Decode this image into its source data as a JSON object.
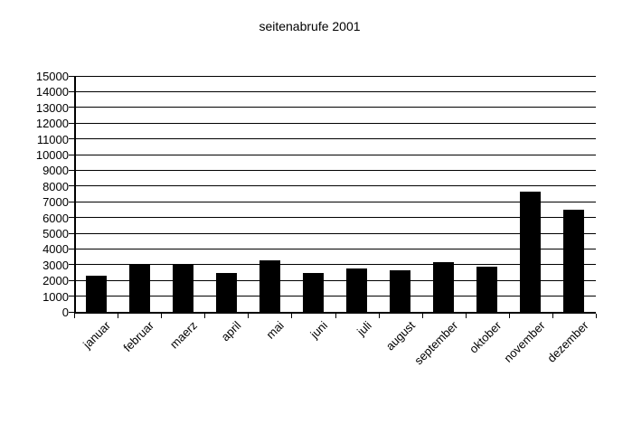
{
  "title": "seitenabrufe 2001",
  "chart_data": {
    "type": "bar",
    "title": "seitenabrufe 2001",
    "categories": [
      "januar",
      "februar",
      "maerz",
      "april",
      "mai",
      "juni",
      "juli",
      "august",
      "september",
      "oktober",
      "november",
      "dezember"
    ],
    "values": [
      2300,
      3000,
      3000,
      2450,
      3300,
      2450,
      2750,
      2650,
      3150,
      2900,
      7650,
      6500
    ],
    "xlabel": "",
    "ylabel": "",
    "ylim": [
      0,
      15000
    ],
    "ytick_step": 1000,
    "ytick_labels": [
      "0",
      "1000",
      "2000",
      "3000",
      "4000",
      "5000",
      "6000",
      "7000",
      "8000",
      "9000",
      "10000",
      "11000",
      "12000",
      "13000",
      "14000",
      "15000"
    ],
    "grid": "horizontal",
    "legend": "none",
    "bar_color": "#000000",
    "axis_color": "#000000",
    "gridline_color": "#000000",
    "background_color": "#ffffff",
    "x_label_rotation_deg": -45
  }
}
